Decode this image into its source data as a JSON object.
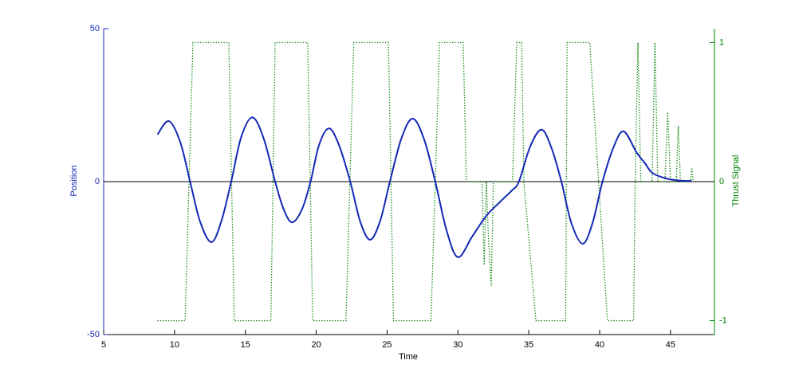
{
  "chart_data": {
    "type": "line",
    "xlabel": "Time",
    "ylabel": "Position",
    "y2label": "Thrust Signal",
    "xlim": [
      5,
      48.1
    ],
    "xticks": [
      5,
      10,
      15,
      20,
      25,
      30,
      35,
      40,
      45
    ],
    "ylim": [
      -50,
      50
    ],
    "yticks": [
      -50,
      0,
      50
    ],
    "y2lim": [
      -1.1,
      1.1
    ],
    "y2ticks": [
      -1,
      0,
      1
    ],
    "hline": 0,
    "series": [
      {
        "name": "Position",
        "color": "#1428b4",
        "axis": "y",
        "style": "solid",
        "x": [
          8.8,
          9.6,
          10.4,
          11.1,
          11.8,
          12.6,
          13.3,
          14.0,
          14.7,
          15.5,
          16.3,
          17.1,
          17.7,
          18.3,
          19.0,
          19.6,
          20.2,
          20.9,
          21.6,
          22.4,
          23.1,
          23.8,
          24.5,
          25.2,
          26.0,
          26.8,
          27.6,
          28.4,
          29.2,
          30.0,
          31.0,
          32.0,
          33.0,
          33.8,
          34.3,
          35.1,
          35.9,
          36.6,
          37.3,
          38.0,
          38.8,
          39.5,
          40.2,
          41.0,
          41.7,
          42.6,
          43.2,
          43.7,
          44.5,
          45.3,
          46.5
        ],
        "values": [
          15.4,
          19.8,
          13,
          0,
          -13,
          -19.8,
          -13,
          0,
          14.5,
          21,
          14,
          0,
          -9,
          -13.3,
          -9,
          0,
          12,
          17.4,
          12,
          0,
          -13,
          -19,
          -13,
          0,
          14,
          20.6,
          14,
          0,
          -16,
          -24.7,
          -18,
          -11.2,
          -6.5,
          -2.9,
          0,
          11.5,
          17,
          11,
          0,
          -13.5,
          -20.3,
          -13.5,
          0,
          11.5,
          16.4,
          9.6,
          6,
          2.9,
          1.3,
          0.5,
          0.2
        ]
      },
      {
        "name": "Thrust Signal",
        "color": "#008000",
        "axis": "y2",
        "style": "dotted",
        "x": [
          8.8,
          10.75,
          11.3,
          13.83,
          14.22,
          16.8,
          17.1,
          19.4,
          19.75,
          22.1,
          22.65,
          25.1,
          25.45,
          28.1,
          28.7,
          30.37,
          30.6,
          31.7,
          31.85,
          32.0,
          32.15,
          32.35,
          32.5,
          33.85,
          34.15,
          34.5,
          34.65,
          35.5,
          37.6,
          37.7,
          39.3,
          40.55,
          42.4,
          42.5,
          42.7,
          42.9,
          43.7,
          43.9,
          44.1,
          44.6,
          44.8,
          45.0,
          45.4,
          45.55,
          45.7,
          46.4,
          46.5,
          46.6
        ],
        "values": [
          -1,
          -1,
          1,
          1,
          -1,
          -1,
          1,
          1,
          -1,
          -1,
          1,
          1,
          -1,
          -1,
          1,
          1,
          0,
          0,
          -0.6,
          0,
          -0.4,
          -0.75,
          0,
          0,
          1,
          1,
          0,
          -1,
          -1,
          1,
          1,
          -1,
          -1,
          0,
          1,
          0,
          0,
          1,
          0,
          0,
          0.5,
          0,
          0,
          0.4,
          0,
          0,
          0.1,
          0
        ]
      }
    ]
  }
}
